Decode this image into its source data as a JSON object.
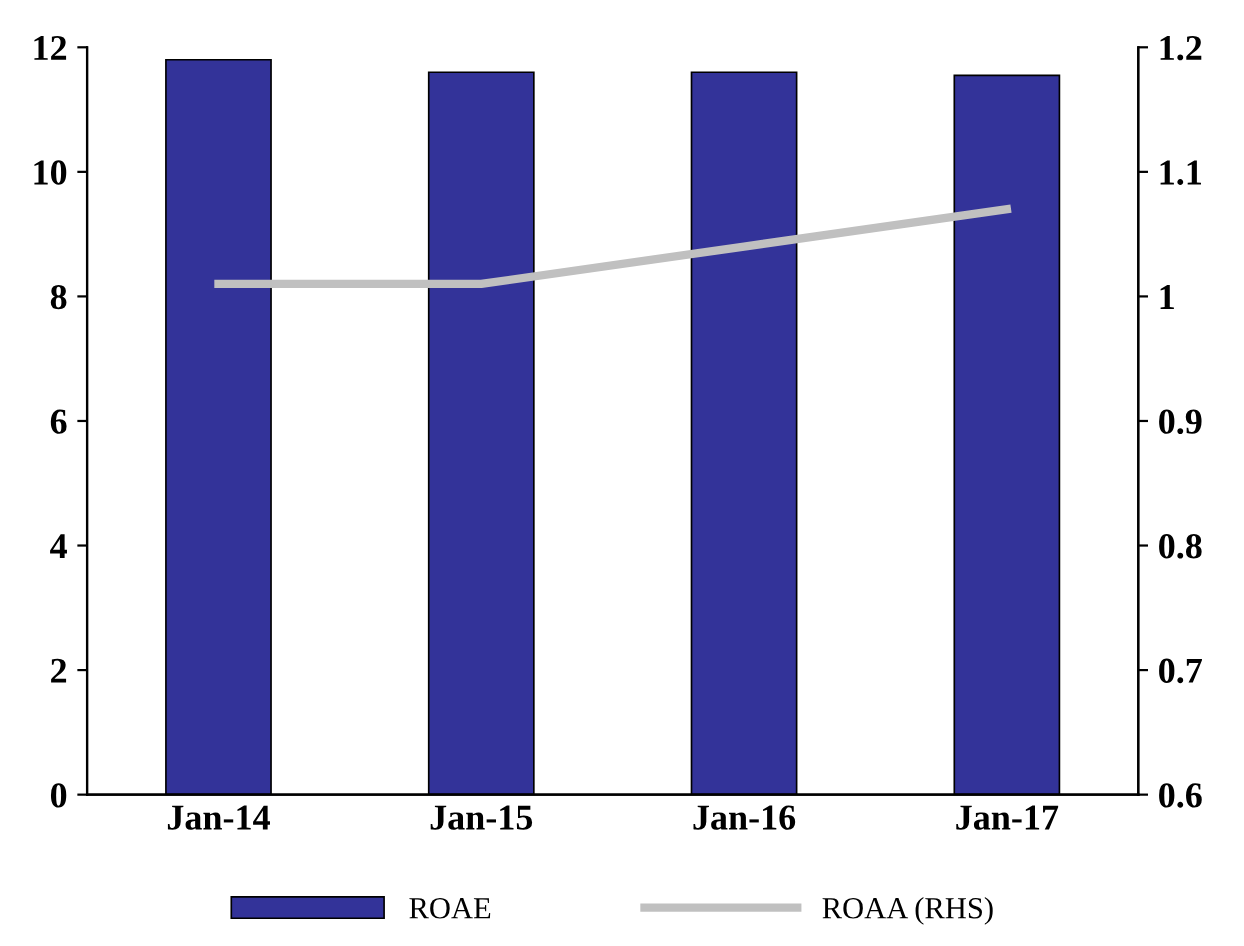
{
  "chart_data": {
    "type": "bar",
    "categories": [
      "Jan-14",
      "Jan-15",
      "Jan-16",
      "Jan-17"
    ],
    "series": [
      {
        "name": "ROAE",
        "color": "#333399",
        "values": [
          11.8,
          11.6,
          11.6,
          11.55
        ]
      },
      {
        "name": "ROAA (RHS)",
        "type": "line",
        "axis": "y2",
        "color": "#c0c0c0",
        "values": [
          1.01,
          1.01,
          1.04,
          1.07
        ]
      }
    ],
    "ylim": [
      0,
      12
    ],
    "yticks": [
      0,
      2,
      4,
      6,
      8,
      10,
      12
    ],
    "y2lim": [
      0.6,
      1.2
    ],
    "y2ticks": [
      {
        "value": 0.6,
        "label": "0.6"
      },
      {
        "value": 0.7,
        "label": "0.7"
      },
      {
        "value": 0.8,
        "label": "0.8"
      },
      {
        "value": 0.9,
        "label": "0.9"
      },
      {
        "value": 1.0,
        "label": "1"
      },
      {
        "value": 1.1,
        "label": "1.1"
      },
      {
        "value": 1.2,
        "label": "1.2"
      }
    ],
    "grid": false,
    "legend": "bottom",
    "marker": "none"
  }
}
